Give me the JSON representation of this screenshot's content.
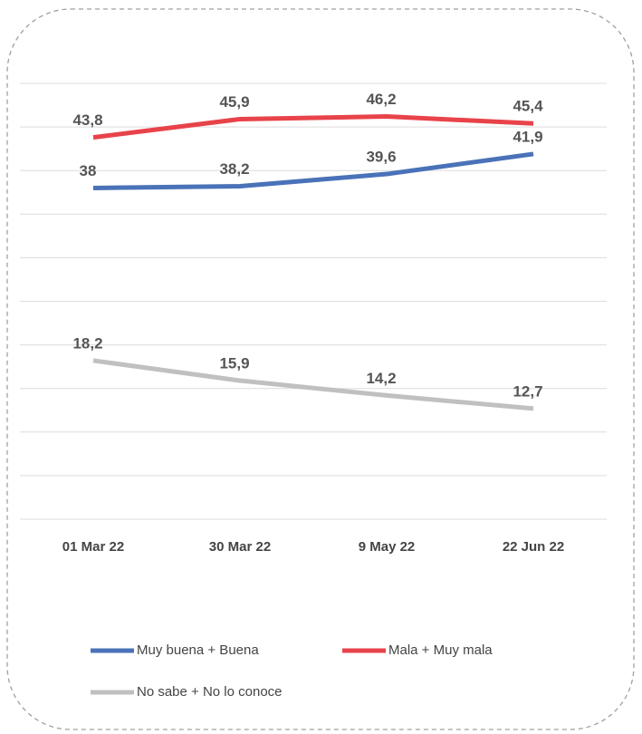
{
  "chart_data": {
    "type": "line",
    "categories": [
      "01 Mar 22",
      "30 Mar 22",
      "9 May 22",
      "22 Jun 22"
    ],
    "series": [
      {
        "name": "Muy buena + Buena",
        "color": "#4a72b8",
        "values": [
          38,
          38.2,
          39.6,
          41.9
        ],
        "value_labels": [
          "38",
          "38,2",
          "39,6",
          "41,9"
        ]
      },
      {
        "name": "Mala + Muy mala",
        "color": "#e8434a",
        "values": [
          43.8,
          45.9,
          46.2,
          45.4
        ],
        "value_labels": [
          "43,8",
          "45,9",
          "46,2",
          "45,4"
        ]
      },
      {
        "name": "No sabe + No lo conoce",
        "color": "#c0c0c0",
        "values": [
          18.2,
          15.9,
          14.2,
          12.7
        ],
        "value_labels": [
          "18,2",
          "15,9",
          "14,2",
          "12,7"
        ]
      }
    ],
    "ylim": [
      0,
      50
    ],
    "yticks": [
      0,
      5,
      10,
      15,
      20,
      25,
      30,
      35,
      40,
      45,
      50
    ],
    "grid": true
  }
}
